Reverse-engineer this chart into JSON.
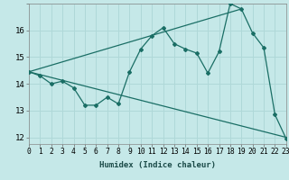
{
  "xlabel": "Humidex (Indice chaleur)",
  "ylabel": "",
  "bg_color": "#c5e8e8",
  "grid_color": "#afd8d8",
  "line_color": "#1a6e65",
  "x_data": [
    0,
    1,
    2,
    3,
    4,
    5,
    6,
    7,
    8,
    9,
    10,
    11,
    12,
    13,
    14,
    15,
    16,
    17,
    18,
    19,
    20,
    21,
    22,
    23
  ],
  "y_main": [
    14.45,
    14.3,
    14.0,
    14.1,
    13.85,
    13.2,
    13.2,
    13.5,
    13.25,
    14.45,
    15.3,
    15.8,
    16.1,
    15.5,
    15.3,
    15.15,
    14.4,
    15.2,
    17.0,
    16.8,
    15.9,
    15.35,
    12.85,
    11.95
  ],
  "trend1_x": [
    0,
    19
  ],
  "trend1_y": [
    14.45,
    16.8
  ],
  "trend2_x": [
    0,
    23
  ],
  "trend2_y": [
    14.45,
    12.0
  ],
  "xlim": [
    0,
    23
  ],
  "ylim": [
    11.75,
    17.0
  ],
  "yticks": [
    12,
    13,
    14,
    15,
    16
  ],
  "xticks": [
    0,
    1,
    2,
    3,
    4,
    5,
    6,
    7,
    8,
    9,
    10,
    11,
    12,
    13,
    14,
    15,
    16,
    17,
    18,
    19,
    20,
    21,
    22,
    23
  ],
  "xlabel_fontsize": 6.5,
  "tick_fontsize": 5.8,
  "ytick_fontsize": 6.5
}
